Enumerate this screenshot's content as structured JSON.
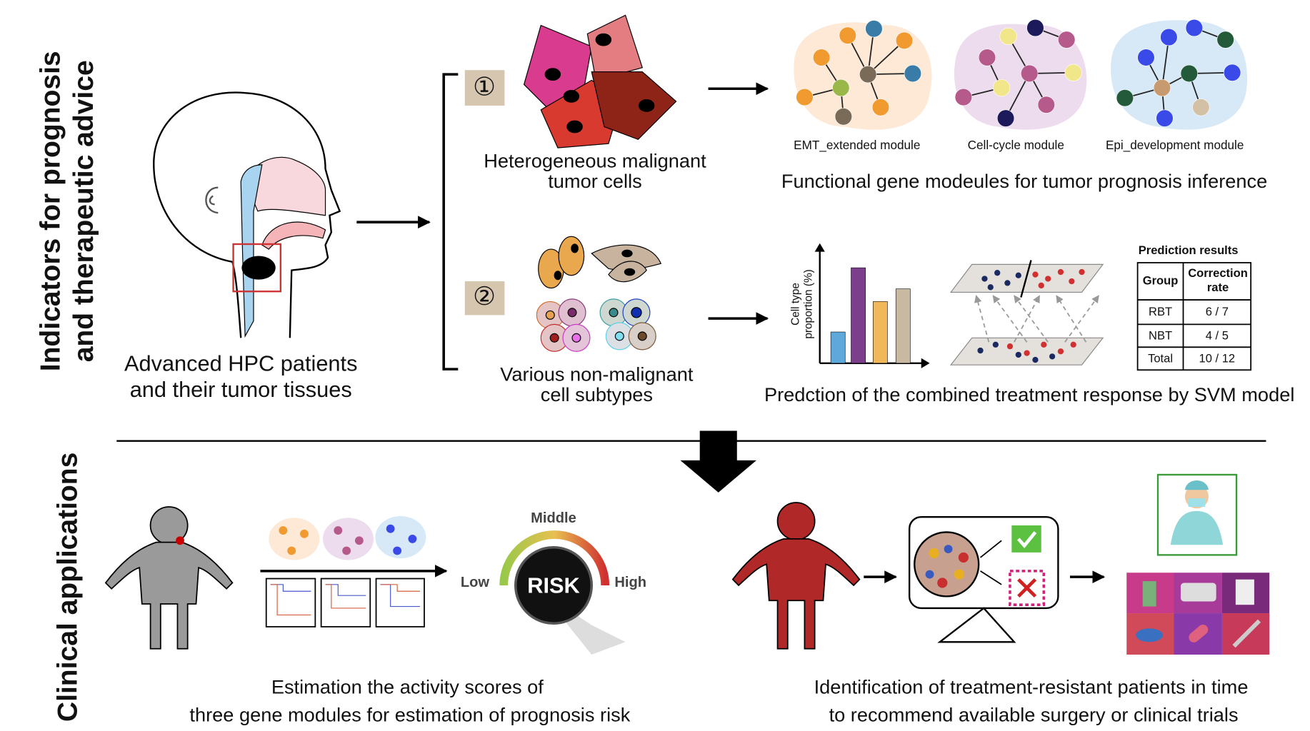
{
  "side_labels": {
    "top": [
      "Indicators for prognosis",
      "and therapeutic advice"
    ],
    "bottom": "Clinical applications"
  },
  "patient": {
    "caption": [
      "Advanced HPC patients",
      "and their tumor tissues"
    ]
  },
  "branch_1": {
    "marker": "①",
    "caption": [
      "Heterogeneous malignant",
      "tumor cells"
    ]
  },
  "modules": {
    "labels": [
      "EMT_extended module",
      "Cell-cycle module",
      "Epi_development module"
    ],
    "caption": "Functional gene modeules for tumor prognosis inference"
  },
  "branch_2": {
    "marker": "②",
    "caption": [
      "Various non-malignant",
      "cell subtypes"
    ]
  },
  "svm": {
    "y_axis_label": [
      "Cell type",
      "proportion (%)"
    ],
    "table": {
      "title": "Prediction results",
      "header": [
        "Group",
        [
          "Correction",
          "rate"
        ]
      ],
      "rows": [
        [
          "RBT",
          "6 / 7"
        ],
        [
          "NBT",
          "4 / 5"
        ],
        [
          "Total",
          "10 / 12"
        ]
      ]
    },
    "caption": "Predction of the combined treatment response by SVM model"
  },
  "risk": {
    "gauge": {
      "middle": "Middle",
      "low": "Low",
      "high": "High",
      "center": "RISK"
    },
    "caption": [
      "Estimation the activity scores of",
      "three gene modules for estimation of prognosis risk"
    ]
  },
  "resistance": {
    "caption": [
      "Identification of treatment-resistant patients in time",
      "to recommend available surgery or clinical trials"
    ]
  }
}
